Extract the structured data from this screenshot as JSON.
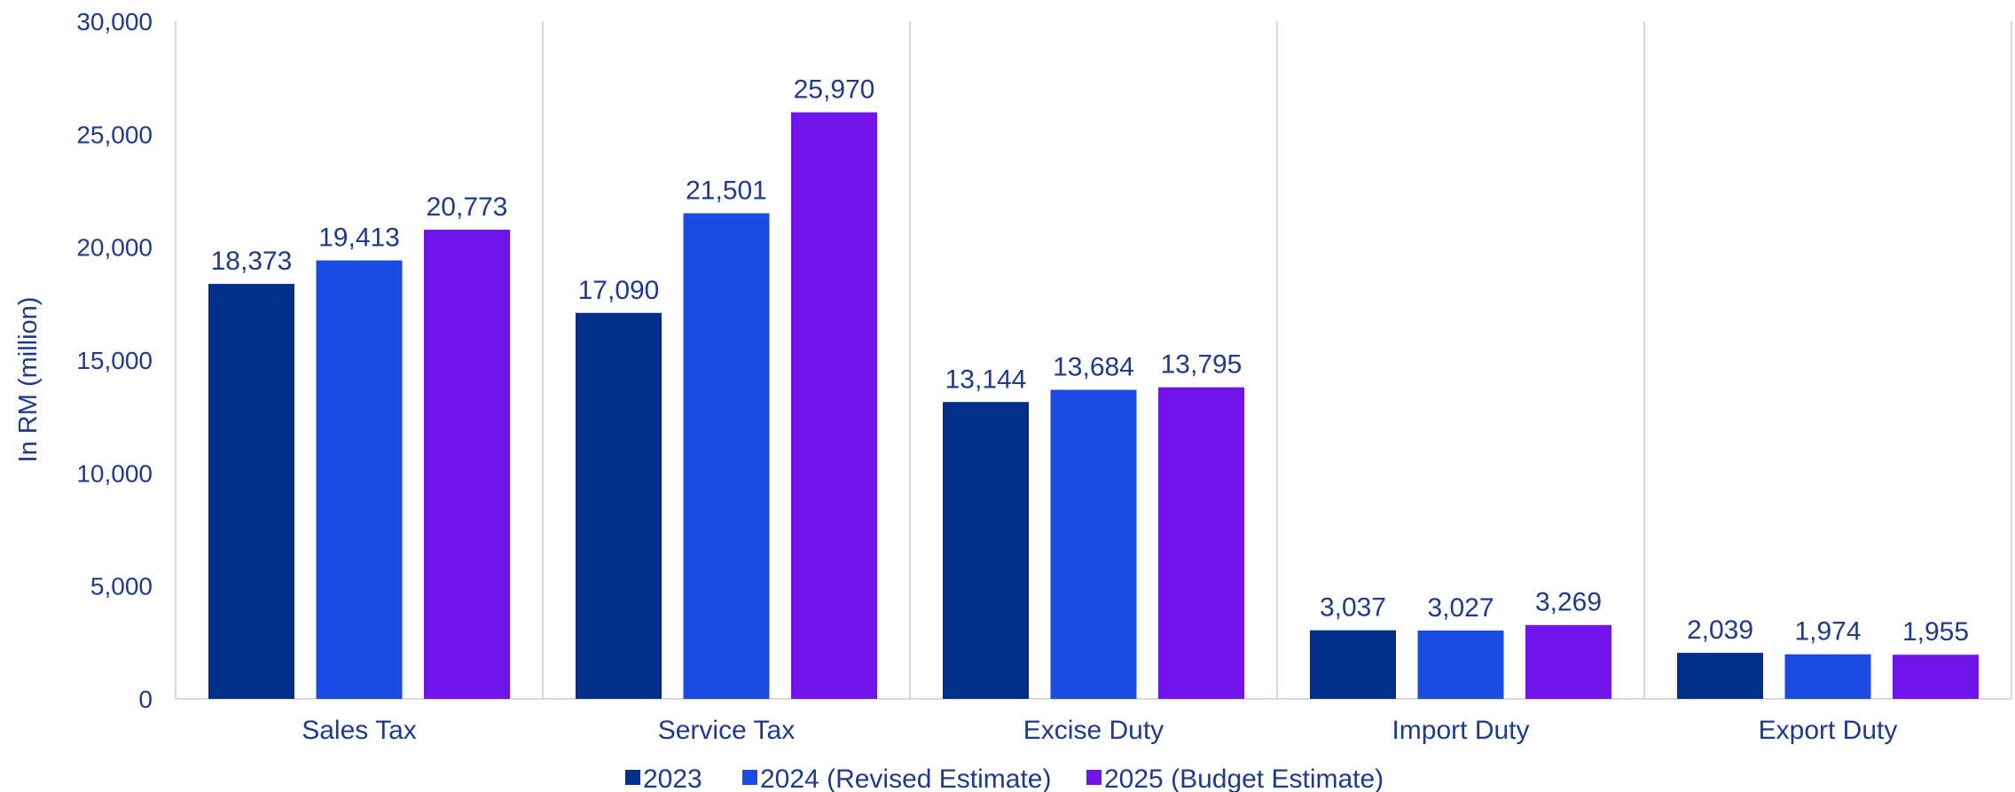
{
  "chart_data": {
    "type": "bar",
    "ylabel": "In RM (million)",
    "ylim": [
      0,
      30000
    ],
    "yticks": [
      0,
      5000,
      10000,
      15000,
      20000,
      25000,
      30000
    ],
    "ytick_labels": [
      "0",
      "5,000",
      "10,000",
      "15,000",
      "20,000",
      "25,000",
      "30,000"
    ],
    "categories": [
      "Sales Tax",
      "Service Tax",
      "Excise Duty",
      "Import Duty",
      "Export Duty"
    ],
    "series": [
      {
        "name": "2023",
        "color": "#00308a",
        "values": [
          18373,
          17090,
          13144,
          3037,
          2039
        ],
        "labels": [
          "18,373",
          "17,090",
          "13,144",
          "3,037",
          "2,039"
        ]
      },
      {
        "name": "2024 (Revised Estimate)",
        "color": "#1c4be3",
        "values": [
          19413,
          21501,
          13684,
          3027,
          1974
        ],
        "labels": [
          "19,413",
          "21,501",
          "13,684",
          "3,027",
          "1,974"
        ]
      },
      {
        "name": "2025 (Budget Estimate)",
        "color": "#7114ea",
        "values": [
          20773,
          25970,
          13795,
          3269,
          1955
        ],
        "labels": [
          "20,773",
          "25,970",
          "13,795",
          "3,269",
          "1,955"
        ]
      }
    ],
    "grid": "vertical category separators",
    "legend_position": "bottom"
  }
}
